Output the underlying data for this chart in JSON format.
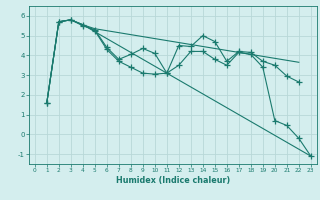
{
  "title": "",
  "xlabel": "Humidex (Indice chaleur)",
  "background_color": "#d4eeee",
  "grid_color": "#b8d8d8",
  "line_color": "#1a7a6e",
  "xlim": [
    -0.5,
    23.5
  ],
  "ylim": [
    -1.5,
    6.5
  ],
  "yticks": [
    -1,
    0,
    1,
    2,
    3,
    4,
    5,
    6
  ],
  "xticks": [
    0,
    1,
    2,
    3,
    4,
    5,
    6,
    7,
    8,
    9,
    10,
    11,
    12,
    13,
    14,
    15,
    16,
    17,
    18,
    19,
    20,
    21,
    22,
    23
  ],
  "series": [
    {
      "x": [
        1,
        2,
        3,
        4,
        5,
        6,
        7,
        8,
        9,
        10,
        11,
        12,
        13,
        14,
        15,
        16,
        17,
        18,
        19,
        20,
        21,
        22
      ],
      "y": [
        1.6,
        5.7,
        5.8,
        5.5,
        5.3,
        4.4,
        3.8,
        4.05,
        4.35,
        4.1,
        3.1,
        4.5,
        4.45,
        5.0,
        4.7,
        3.7,
        4.2,
        4.15,
        3.7,
        3.5,
        2.95,
        2.65
      ],
      "marker": "+"
    },
    {
      "x": [
        1,
        2,
        3,
        4,
        5,
        6,
        7,
        8,
        9,
        10,
        11,
        12,
        13,
        14,
        15,
        16,
        17,
        18,
        19,
        20,
        21,
        22
      ],
      "y": [
        1.6,
        5.7,
        5.8,
        5.55,
        5.35,
        5.25,
        5.15,
        5.05,
        4.95,
        4.85,
        4.75,
        4.65,
        4.55,
        4.45,
        4.35,
        4.25,
        4.15,
        4.05,
        3.95,
        3.85,
        3.75,
        3.65
      ],
      "marker": null
    },
    {
      "x": [
        1,
        2,
        3,
        4,
        23
      ],
      "y": [
        1.6,
        5.7,
        5.8,
        5.55,
        -1.1
      ],
      "marker": null
    },
    {
      "x": [
        1,
        2,
        3,
        4,
        5,
        6,
        7,
        8,
        9,
        10,
        11,
        12,
        13,
        14,
        15,
        16,
        17,
        18,
        19,
        20,
        21,
        22,
        23
      ],
      "y": [
        1.6,
        5.7,
        5.8,
        5.55,
        5.25,
        4.3,
        3.7,
        3.4,
        3.1,
        3.05,
        3.1,
        3.5,
        4.2,
        4.2,
        3.8,
        3.5,
        4.15,
        4.05,
        3.4,
        0.7,
        0.45,
        -0.2,
        -1.1
      ],
      "marker": "+"
    }
  ]
}
